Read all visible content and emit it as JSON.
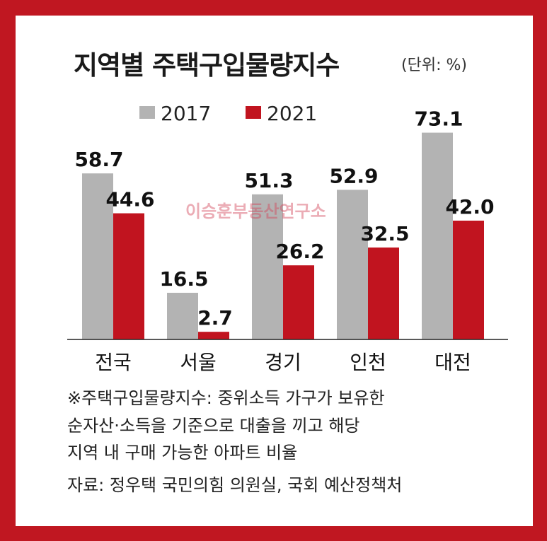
{
  "title": "지역별 주택구입물량지수",
  "unit": "(단위: %)",
  "watermark": "이승훈부동산연구소",
  "colors": {
    "2017": "#b3b3b3",
    "2021": "#c1141f",
    "frame": "#c01721"
  },
  "chart_data": {
    "type": "bar",
    "title": "지역별 주택구입물량지수",
    "unit": "%",
    "categories": [
      "전국",
      "서울",
      "경기",
      "인천",
      "대전"
    ],
    "series": [
      {
        "name": "2017",
        "values": [
          58.7,
          16.5,
          51.3,
          52.9,
          73.1
        ]
      },
      {
        "name": "2021",
        "values": [
          44.6,
          2.7,
          26.2,
          32.5,
          42.0
        ]
      }
    ],
    "value_labels": [
      [
        "58.7",
        "16.5",
        "51.3",
        "52.9",
        "73.1"
      ],
      [
        "44.6",
        "2.7",
        "26.2",
        "32.5",
        "42.0"
      ]
    ],
    "legend": "top",
    "grid": false
  },
  "notes": {
    "definition": [
      "※주택구입물량지수: 중위소득 가구가 보유한",
      "순자산·소득을 기준으로 대출을 끼고 해당",
      "지역 내 구매 가능한 아파트 비율"
    ],
    "source": "자료: 정우택 국민의힘 의원실, 국회 예산정책처"
  }
}
